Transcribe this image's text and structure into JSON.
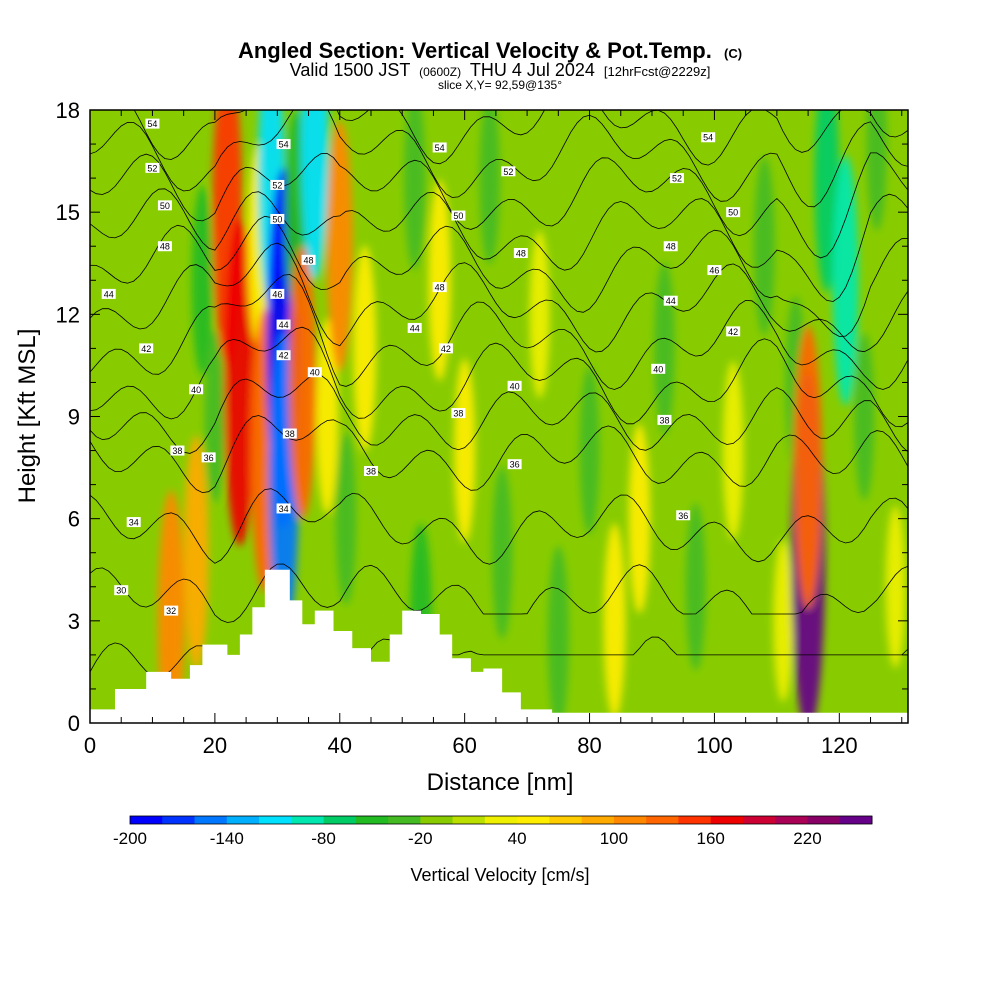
{
  "header": {
    "title": "Angled Section: Vertical Velocity & Pot.Temp.",
    "copyright": "(C)",
    "valid_prefix": "Valid 1500 JST",
    "valid_zulu": "(0600Z)",
    "valid_date": "THU 4 Jul 2024",
    "forecast": "[12hrFcst@2229z]",
    "slice": "slice X,Y= 92,59@135°"
  },
  "chart_data": {
    "type": "heatmap",
    "xlabel": "Distance [nm]",
    "ylabel": "Height [Kft MSL]",
    "xlim": [
      0,
      131
    ],
    "ylim": [
      0,
      18
    ],
    "x_ticks": [
      "0",
      "20",
      "40",
      "60",
      "80",
      "100",
      "120"
    ],
    "x_tick_values": [
      0,
      20,
      40,
      60,
      80,
      100,
      120
    ],
    "y_ticks": [
      "0",
      "3",
      "6",
      "9",
      "12",
      "15",
      "18"
    ],
    "y_tick_values": [
      0,
      3,
      6,
      9,
      12,
      15,
      18
    ],
    "colorbar": {
      "label": "Vertical Velocity [cm/s]",
      "min": -200,
      "max": 260,
      "tick_labels": [
        "-200",
        "-140",
        "-80",
        "-20",
        "40",
        "100",
        "160",
        "220"
      ],
      "tick_values": [
        -200,
        -140,
        -80,
        -20,
        40,
        100,
        160,
        220
      ],
      "colors": [
        "#0000ff",
        "#0033ff",
        "#0077ff",
        "#00b0ff",
        "#00e0ff",
        "#00e8b0",
        "#00cc66",
        "#22bb22",
        "#44bb22",
        "#88cc00",
        "#bbe000",
        "#eef000",
        "#ffee00",
        "#ffcc00",
        "#ffaa00",
        "#ff8800",
        "#ff6600",
        "#ff3300",
        "#ee0000",
        "#cc0033",
        "#aa0055",
        "#880066",
        "#660088"
      ]
    },
    "terrain_kft": [
      [
        0,
        0.4
      ],
      [
        4,
        1.0
      ],
      [
        9,
        1.5
      ],
      [
        13,
        1.3
      ],
      [
        16,
        1.7
      ],
      [
        18,
        2.3
      ],
      [
        22,
        2.0
      ],
      [
        24,
        2.6
      ],
      [
        26,
        3.4
      ],
      [
        28,
        4.5
      ],
      [
        31,
        4.5
      ],
      [
        32,
        3.6
      ],
      [
        34,
        2.9
      ],
      [
        36,
        3.3
      ],
      [
        39,
        2.7
      ],
      [
        42,
        2.2
      ],
      [
        45,
        1.8
      ],
      [
        48,
        2.6
      ],
      [
        50,
        3.3
      ],
      [
        53,
        3.2
      ],
      [
        56,
        2.6
      ],
      [
        58,
        1.9
      ],
      [
        61,
        1.5
      ],
      [
        63,
        1.6
      ],
      [
        66,
        0.9
      ],
      [
        69,
        0.4
      ],
      [
        74,
        0.3
      ],
      [
        131,
        0.3
      ]
    ],
    "w_cells": [
      {
        "x": 5,
        "z": 4,
        "w": -8
      },
      {
        "x": 9,
        "z": 10,
        "w": -20
      },
      {
        "x": 13,
        "z": 3,
        "w": 110
      },
      {
        "x": 17,
        "z": 5,
        "w": 85
      },
      {
        "x": 18,
        "z": 13,
        "w": -45
      },
      {
        "x": 20,
        "z": 9,
        "w": -30
      },
      {
        "x": 22,
        "z": 15,
        "w": 150
      },
      {
        "x": 24,
        "z": 10,
        "w": 170
      },
      {
        "x": 27,
        "z": 14,
        "w": 60
      },
      {
        "x": 28,
        "z": 8,
        "w": 130
      },
      {
        "x": 29,
        "z": 16,
        "w": -110
      },
      {
        "x": 31,
        "z": 11,
        "w": -210
      },
      {
        "x": 31,
        "z": 7,
        "w": -150
      },
      {
        "x": 33,
        "z": 15,
        "w": -60
      },
      {
        "x": 34,
        "z": 10,
        "w": 120
      },
      {
        "x": 36,
        "z": 17,
        "w": -120
      },
      {
        "x": 38,
        "z": 9,
        "w": 50
      },
      {
        "x": 40,
        "z": 14,
        "w": 100
      },
      {
        "x": 41,
        "z": 6,
        "w": -30
      },
      {
        "x": 44,
        "z": 11,
        "w": 60
      },
      {
        "x": 47,
        "z": 4,
        "w": -20
      },
      {
        "x": 52,
        "z": 16,
        "w": -40
      },
      {
        "x": 53,
        "z": 3,
        "w": -50
      },
      {
        "x": 56,
        "z": 13,
        "w": 55
      },
      {
        "x": 60,
        "z": 8,
        "w": 40
      },
      {
        "x": 64,
        "z": 16,
        "w": -30
      },
      {
        "x": 66,
        "z": 5,
        "w": -30
      },
      {
        "x": 72,
        "z": 12,
        "w": 25
      },
      {
        "x": 75,
        "z": 2.5,
        "w": -40
      },
      {
        "x": 80,
        "z": 8,
        "w": -25
      },
      {
        "x": 84,
        "z": 3,
        "w": 50
      },
      {
        "x": 86,
        "z": 14,
        "w": -20
      },
      {
        "x": 88,
        "z": 6,
        "w": 45
      },
      {
        "x": 92,
        "z": 11,
        "w": -30
      },
      {
        "x": 97,
        "z": 4,
        "w": -25
      },
      {
        "x": 103,
        "z": 8,
        "w": 35
      },
      {
        "x": 108,
        "z": 14,
        "w": -35
      },
      {
        "x": 111,
        "z": 3,
        "w": 20
      },
      {
        "x": 113,
        "z": 10,
        "w": -30
      },
      {
        "x": 115,
        "z": 5,
        "w": 240
      },
      {
        "x": 115,
        "z": 7.5,
        "w": 130
      },
      {
        "x": 118,
        "z": 16,
        "w": -80
      },
      {
        "x": 121,
        "z": 13,
        "w": -100
      },
      {
        "x": 124,
        "z": 9,
        "w": -25
      },
      {
        "x": 126,
        "z": 17,
        "w": -30
      },
      {
        "x": 129,
        "z": 4,
        "w": 20
      }
    ],
    "theta_levels": [
      "30",
      "32",
      "34",
      "36",
      "38",
      "40",
      "42",
      "44",
      "46",
      "48",
      "50",
      "52",
      "54"
    ],
    "theta_labels": [
      {
        "text": "54",
        "x": 10,
        "z": 17.6
      },
      {
        "text": "52",
        "x": 10,
        "z": 16.3
      },
      {
        "text": "50",
        "x": 12,
        "z": 15.2
      },
      {
        "text": "48",
        "x": 12,
        "z": 14
      },
      {
        "text": "44",
        "x": 3,
        "z": 12.6
      },
      {
        "text": "42",
        "x": 9,
        "z": 11
      },
      {
        "text": "40",
        "x": 17,
        "z": 9.8
      },
      {
        "text": "38",
        "x": 14,
        "z": 8
      },
      {
        "text": "36",
        "x": 19,
        "z": 7.8
      },
      {
        "text": "34",
        "x": 7,
        "z": 5.9
      },
      {
        "text": "30",
        "x": 5,
        "z": 3.9
      },
      {
        "text": "32",
        "x": 13,
        "z": 3.3
      },
      {
        "text": "54",
        "x": 31,
        "z": 17
      },
      {
        "text": "52",
        "x": 30,
        "z": 15.8
      },
      {
        "text": "50",
        "x": 30,
        "z": 14.8
      },
      {
        "text": "48",
        "x": 35,
        "z": 13.6
      },
      {
        "text": "46",
        "x": 30,
        "z": 12.6
      },
      {
        "text": "44",
        "x": 31,
        "z": 11.7
      },
      {
        "text": "42",
        "x": 31,
        "z": 10.8
      },
      {
        "text": "40",
        "x": 36,
        "z": 10.3
      },
      {
        "text": "38",
        "x": 32,
        "z": 8.5
      },
      {
        "text": "34",
        "x": 31,
        "z": 6.3
      },
      {
        "text": "38",
        "x": 45,
        "z": 7.4
      },
      {
        "text": "54",
        "x": 56,
        "z": 16.9
      },
      {
        "text": "52",
        "x": 67,
        "z": 16.2
      },
      {
        "text": "50",
        "x": 59,
        "z": 14.9
      },
      {
        "text": "48",
        "x": 69,
        "z": 13.8
      },
      {
        "text": "48",
        "x": 56,
        "z": 12.8
      },
      {
        "text": "44",
        "x": 52,
        "z": 11.6
      },
      {
        "text": "42",
        "x": 57,
        "z": 11
      },
      {
        "text": "40",
        "x": 68,
        "z": 9.9
      },
      {
        "text": "38",
        "x": 59,
        "z": 9.1
      },
      {
        "text": "36",
        "x": 68,
        "z": 7.6
      },
      {
        "text": "54",
        "x": 99,
        "z": 17.2
      },
      {
        "text": "52",
        "x": 94,
        "z": 16
      },
      {
        "text": "50",
        "x": 103,
        "z": 15
      },
      {
        "text": "48",
        "x": 93,
        "z": 14
      },
      {
        "text": "46",
        "x": 100,
        "z": 13.3
      },
      {
        "text": "44",
        "x": 93,
        "z": 12.4
      },
      {
        "text": "42",
        "x": 103,
        "z": 11.5
      },
      {
        "text": "40",
        "x": 91,
        "z": 10.4
      },
      {
        "text": "38",
        "x": 92,
        "z": 8.9
      },
      {
        "text": "36",
        "x": 95,
        "z": 6.1
      }
    ]
  }
}
